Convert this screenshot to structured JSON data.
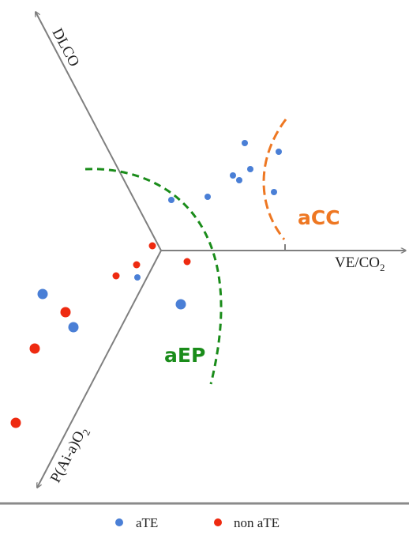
{
  "chart_data": {
    "type": "scatter",
    "title": "",
    "axes": [
      {
        "id": "dlco",
        "label": "DLCO"
      },
      {
        "id": "ve",
        "label_main": "VE/CO",
        "label_sub": "2"
      },
      {
        "id": "paa",
        "label_main": "P(Ai-a)O",
        "label_sub": "2"
      }
    ],
    "regions": [
      {
        "name": "aEP",
        "color": "#1a8c1a"
      },
      {
        "name": "aCC",
        "color": "#ee7722"
      }
    ],
    "series": [
      {
        "name": "aTE",
        "color": "#4a7fd6",
        "points": [
          [
            310,
            181
          ],
          [
            353,
            192
          ],
          [
            317,
            214
          ],
          [
            295,
            222
          ],
          [
            303,
            228
          ],
          [
            347,
            243
          ],
          [
            263,
            249
          ],
          [
            217,
            253
          ],
          [
            174,
            351
          ],
          [
            229,
            385
          ],
          [
            54,
            372
          ],
          [
            93,
            414
          ]
        ]
      },
      {
        "name": "non aTE",
        "color": "#ee2a10",
        "points": [
          [
            193,
            311
          ],
          [
            173,
            335
          ],
          [
            147,
            349
          ],
          [
            237,
            331
          ],
          [
            83,
            395
          ],
          [
            44,
            441
          ],
          [
            20,
            535
          ]
        ]
      }
    ],
    "legend": {
      "position": "bottom-center"
    }
  }
}
